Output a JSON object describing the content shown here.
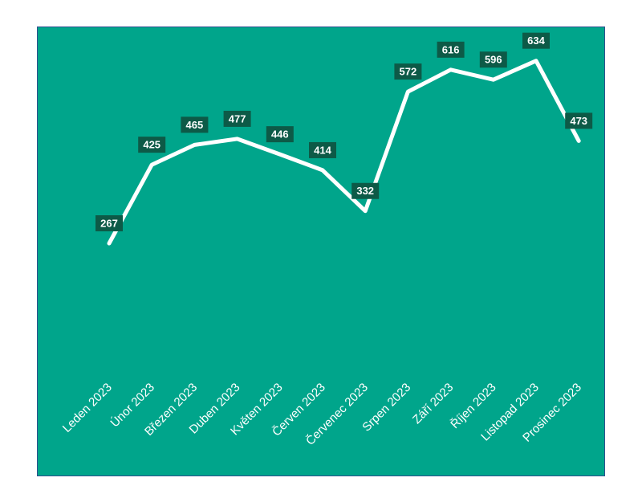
{
  "chart_data": {
    "type": "line",
    "categories": [
      "Leden 2023",
      "Únor 2023",
      "Březen 2023",
      "Duben 2023",
      "Květen 2023",
      "Červen 2023",
      "Červenec 2023",
      "Srpen 2023",
      "Září 2023",
      "Říjen 2023",
      "Listopad 2023",
      "Prosinec 2023"
    ],
    "series": [
      {
        "values": [
          267,
          425,
          465,
          477,
          446,
          414,
          332,
          572,
          616,
          596,
          634,
          473
        ]
      }
    ],
    "data_labels": [
      "267",
      "425",
      "465",
      "477",
      "446",
      "414",
      "332",
      "572",
      "616",
      "596",
      "634",
      "473"
    ],
    "title": "",
    "xlabel": "",
    "ylabel": "",
    "grid": false,
    "legend": "none",
    "colors": {
      "background": "#00a58b",
      "line": "#ffffff",
      "label_box": "#0d5a47",
      "drop_line": "#ffffff",
      "text": "#ffffff"
    }
  }
}
